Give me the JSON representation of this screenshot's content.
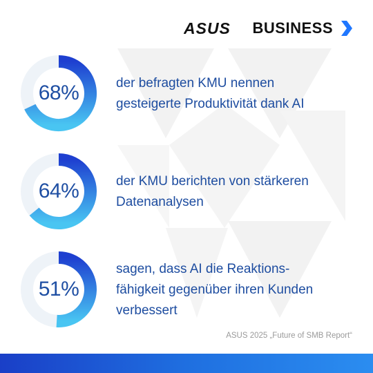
{
  "brand": {
    "logo_text": "ASUS",
    "word": "BUSINESS",
    "icon": "chevron-right-icon",
    "accent_color": "#1f77ff"
  },
  "stats": [
    {
      "value": "68%",
      "fraction": 0.68,
      "text_lines": [
        "der befragten KMU nennen",
        "gesteigerte Produktivität dank AI"
      ]
    },
    {
      "value": "64%",
      "fraction": 0.64,
      "text_lines": [
        "der KMU berichten von stärkeren",
        "Datenanalysen"
      ]
    },
    {
      "value": "51%",
      "fraction": 0.51,
      "text_lines": [
        "sagen, dass AI die Reaktions-",
        "fähigkeit gegenüber ihren Kunden",
        "verbessert"
      ]
    }
  ],
  "source": "ASUS 2025 „Future of SMB Report“",
  "colors": {
    "text_blue": "#1e4da0",
    "ring_dark": "#1e3fd0",
    "ring_light": "#49c5f2",
    "ring_track": "#eef3f8",
    "footer_left": "#1a3fc7",
    "footer_right": "#2b8df0"
  }
}
